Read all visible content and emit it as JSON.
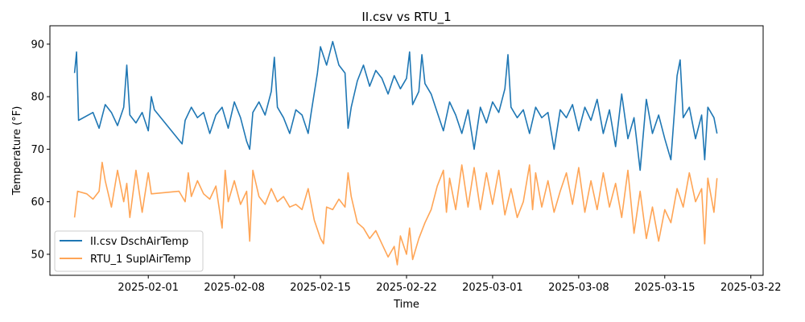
{
  "chart_data": {
    "type": "line",
    "title": "II.csv vs RTU_1",
    "xlabel": "Time",
    "ylabel": "Temperature (°F)",
    "x_axis_type": "date",
    "xlim": [
      "2025-01-24",
      "2025-03-23"
    ],
    "ylim": [
      46,
      93.5
    ],
    "x_ticks": [
      "2025-02-01",
      "2025-02-08",
      "2025-02-15",
      "2025-02-22",
      "2025-03-01",
      "2025-03-08",
      "2025-03-15",
      "2025-03-22"
    ],
    "y_ticks": [
      50,
      60,
      70,
      80,
      90
    ],
    "grid": false,
    "legend": {
      "placement": "bottom-left"
    },
    "series": [
      {
        "name": "II.csv DschAirTemp",
        "color": "#1f77b4",
        "opacity": 1,
        "points": [
          [
            "2025-01-26T00:00",
            84.5
          ],
          [
            "2025-01-26T04:00",
            88.5
          ],
          [
            "2025-01-26T08:00",
            75.5
          ],
          [
            "2025-01-27T12:00",
            77.0
          ],
          [
            "2025-01-28T00:00",
            74.0
          ],
          [
            "2025-01-28T12:00",
            78.5
          ],
          [
            "2025-01-29T00:00",
            77.0
          ],
          [
            "2025-01-29T12:00",
            74.5
          ],
          [
            "2025-01-30T00:00",
            78.0
          ],
          [
            "2025-01-30T06:00",
            86.0
          ],
          [
            "2025-01-30T12:00",
            76.5
          ],
          [
            "2025-01-31T00:00",
            75.0
          ],
          [
            "2025-01-31T12:00",
            77.0
          ],
          [
            "2025-02-01T00:00",
            73.5
          ],
          [
            "2025-02-01T06:00",
            80.0
          ],
          [
            "2025-02-01T12:00",
            77.5
          ],
          [
            "2025-02-03T18:00",
            71.0
          ],
          [
            "2025-02-04T00:00",
            75.5
          ],
          [
            "2025-02-04T12:00",
            78.0
          ],
          [
            "2025-02-05T00:00",
            76.0
          ],
          [
            "2025-02-05T12:00",
            77.0
          ],
          [
            "2025-02-06T00:00",
            73.0
          ],
          [
            "2025-02-06T12:00",
            76.5
          ],
          [
            "2025-02-07T00:00",
            78.0
          ],
          [
            "2025-02-07T12:00",
            74.0
          ],
          [
            "2025-02-08T00:00",
            79.0
          ],
          [
            "2025-02-08T12:00",
            76.0
          ],
          [
            "2025-02-09T00:00",
            71.5
          ],
          [
            "2025-02-09T06:00",
            70.0
          ],
          [
            "2025-02-09T12:00",
            77.0
          ],
          [
            "2025-02-10T00:00",
            79.0
          ],
          [
            "2025-02-10T12:00",
            76.5
          ],
          [
            "2025-02-11T00:00",
            81.0
          ],
          [
            "2025-02-11T06:00",
            87.5
          ],
          [
            "2025-02-11T12:00",
            78.0
          ],
          [
            "2025-02-12T00:00",
            76.0
          ],
          [
            "2025-02-12T12:00",
            73.0
          ],
          [
            "2025-02-13T00:00",
            77.5
          ],
          [
            "2025-02-13T12:00",
            76.5
          ],
          [
            "2025-02-14T00:00",
            73.0
          ],
          [
            "2025-02-14T06:00",
            77.0
          ],
          [
            "2025-02-14T18:00",
            84.5
          ],
          [
            "2025-02-15T00:00",
            89.5
          ],
          [
            "2025-02-15T12:00",
            86.0
          ],
          [
            "2025-02-16T00:00",
            90.5
          ],
          [
            "2025-02-16T12:00",
            86.0
          ],
          [
            "2025-02-17T00:00",
            84.5
          ],
          [
            "2025-02-17T06:00",
            74.0
          ],
          [
            "2025-02-17T12:00",
            78.0
          ],
          [
            "2025-02-18T00:00",
            83.0
          ],
          [
            "2025-02-18T12:00",
            86.0
          ],
          [
            "2025-02-19T00:00",
            82.0
          ],
          [
            "2025-02-19T12:00",
            85.0
          ],
          [
            "2025-02-20T00:00",
            83.5
          ],
          [
            "2025-02-20T12:00",
            80.5
          ],
          [
            "2025-02-21T00:00",
            84.0
          ],
          [
            "2025-02-21T12:00",
            81.5
          ],
          [
            "2025-02-22T00:00",
            83.5
          ],
          [
            "2025-02-22T06:00",
            88.5
          ],
          [
            "2025-02-22T12:00",
            78.5
          ],
          [
            "2025-02-23T00:00",
            81.0
          ],
          [
            "2025-02-23T06:00",
            88.0
          ],
          [
            "2025-02-23T12:00",
            82.5
          ],
          [
            "2025-02-24T00:00",
            80.5
          ],
          [
            "2025-02-24T12:00",
            77.0
          ],
          [
            "2025-02-25T00:00",
            73.5
          ],
          [
            "2025-02-25T12:00",
            79.0
          ],
          [
            "2025-02-26T00:00",
            76.5
          ],
          [
            "2025-02-26T12:00",
            73.0
          ],
          [
            "2025-02-27T00:00",
            77.5
          ],
          [
            "2025-02-27T12:00",
            70.0
          ],
          [
            "2025-02-28T00:00",
            78.0
          ],
          [
            "2025-02-28T12:00",
            75.0
          ],
          [
            "2025-03-01T00:00",
            79.0
          ],
          [
            "2025-03-01T12:00",
            77.0
          ],
          [
            "2025-03-02T00:00",
            81.5
          ],
          [
            "2025-03-02T06:00",
            88.0
          ],
          [
            "2025-03-02T12:00",
            78.0
          ],
          [
            "2025-03-03T00:00",
            76.0
          ],
          [
            "2025-03-03T12:00",
            77.5
          ],
          [
            "2025-03-04T00:00",
            73.0
          ],
          [
            "2025-03-04T12:00",
            78.0
          ],
          [
            "2025-03-05T00:00",
            76.0
          ],
          [
            "2025-03-05T12:00",
            77.0
          ],
          [
            "2025-03-06T00:00",
            70.0
          ],
          [
            "2025-03-06T12:00",
            77.5
          ],
          [
            "2025-03-07T00:00",
            76.0
          ],
          [
            "2025-03-07T12:00",
            78.5
          ],
          [
            "2025-03-08T00:00",
            73.5
          ],
          [
            "2025-03-08T12:00",
            78.0
          ],
          [
            "2025-03-09T00:00",
            75.5
          ],
          [
            "2025-03-09T12:00",
            79.5
          ],
          [
            "2025-03-10T00:00",
            73.0
          ],
          [
            "2025-03-10T12:00",
            77.5
          ],
          [
            "2025-03-11T00:00",
            70.5
          ],
          [
            "2025-03-11T12:00",
            80.5
          ],
          [
            "2025-03-12T00:00",
            72.0
          ],
          [
            "2025-03-12T12:00",
            76.0
          ],
          [
            "2025-03-13T00:00",
            66.0
          ],
          [
            "2025-03-13T12:00",
            79.5
          ],
          [
            "2025-03-14T00:00",
            73.0
          ],
          [
            "2025-03-14T12:00",
            76.5
          ],
          [
            "2025-03-15T00:00",
            72.0
          ],
          [
            "2025-03-15T12:00",
            68.0
          ],
          [
            "2025-03-16T00:00",
            84.0
          ],
          [
            "2025-03-16T06:00",
            87.0
          ],
          [
            "2025-03-16T12:00",
            76.0
          ],
          [
            "2025-03-17T00:00",
            78.0
          ],
          [
            "2025-03-17T12:00",
            72.0
          ],
          [
            "2025-03-18T00:00",
            76.5
          ],
          [
            "2025-03-18T06:00",
            68.0
          ],
          [
            "2025-03-18T12:00",
            78.0
          ],
          [
            "2025-03-19T00:00",
            76.0
          ],
          [
            "2025-03-19T06:00",
            73.0
          ]
        ]
      },
      {
        "name": "RTU_1 SuplAirTemp",
        "color": "#ff7f0e",
        "opacity": 0.7,
        "points": [
          [
            "2025-01-26T00:00",
            57.0
          ],
          [
            "2025-01-26T06:00",
            62.0
          ],
          [
            "2025-01-27T00:00",
            61.5
          ],
          [
            "2025-01-27T12:00",
            60.5
          ],
          [
            "2025-01-28T00:00",
            62.0
          ],
          [
            "2025-01-28T06:00",
            67.5
          ],
          [
            "2025-01-28T12:00",
            64.0
          ],
          [
            "2025-01-29T00:00",
            59.0
          ],
          [
            "2025-01-29T12:00",
            66.0
          ],
          [
            "2025-01-30T00:00",
            60.0
          ],
          [
            "2025-01-30T06:00",
            63.5
          ],
          [
            "2025-01-30T12:00",
            57.0
          ],
          [
            "2025-01-31T00:00",
            66.0
          ],
          [
            "2025-01-31T12:00",
            58.0
          ],
          [
            "2025-02-01T00:00",
            65.5
          ],
          [
            "2025-02-01T06:00",
            61.5
          ],
          [
            "2025-02-03T12:00",
            62.0
          ],
          [
            "2025-02-04T00:00",
            60.0
          ],
          [
            "2025-02-04T06:00",
            65.5
          ],
          [
            "2025-02-04T12:00",
            61.0
          ],
          [
            "2025-02-05T00:00",
            64.0
          ],
          [
            "2025-02-05T12:00",
            61.5
          ],
          [
            "2025-02-06T00:00",
            60.5
          ],
          [
            "2025-02-06T12:00",
            63.0
          ],
          [
            "2025-02-07T00:00",
            55.0
          ],
          [
            "2025-02-07T06:00",
            66.0
          ],
          [
            "2025-02-07T12:00",
            60.0
          ],
          [
            "2025-02-08T00:00",
            64.0
          ],
          [
            "2025-02-08T12:00",
            59.5
          ],
          [
            "2025-02-09T00:00",
            62.0
          ],
          [
            "2025-02-09T06:00",
            52.5
          ],
          [
            "2025-02-09T12:00",
            66.0
          ],
          [
            "2025-02-10T00:00",
            61.0
          ],
          [
            "2025-02-10T12:00",
            59.5
          ],
          [
            "2025-02-11T00:00",
            62.5
          ],
          [
            "2025-02-11T12:00",
            60.0
          ],
          [
            "2025-02-12T00:00",
            61.0
          ],
          [
            "2025-02-12T12:00",
            59.0
          ],
          [
            "2025-02-13T00:00",
            59.5
          ],
          [
            "2025-02-13T12:00",
            58.5
          ],
          [
            "2025-02-14T00:00",
            62.5
          ],
          [
            "2025-02-14T12:00",
            56.5
          ],
          [
            "2025-02-15T00:00",
            53.0
          ],
          [
            "2025-02-15T06:00",
            52.0
          ],
          [
            "2025-02-15T12:00",
            59.0
          ],
          [
            "2025-02-16T00:00",
            58.5
          ],
          [
            "2025-02-16T12:00",
            60.5
          ],
          [
            "2025-02-17T00:00",
            59.0
          ],
          [
            "2025-02-17T06:00",
            65.5
          ],
          [
            "2025-02-17T12:00",
            61.0
          ],
          [
            "2025-02-18T00:00",
            56.0
          ],
          [
            "2025-02-18T12:00",
            55.0
          ],
          [
            "2025-02-19T00:00",
            53.0
          ],
          [
            "2025-02-19T12:00",
            54.5
          ],
          [
            "2025-02-20T00:00",
            52.0
          ],
          [
            "2025-02-20T12:00",
            49.5
          ],
          [
            "2025-02-21T00:00",
            51.5
          ],
          [
            "2025-02-21T06:00",
            48.0
          ],
          [
            "2025-02-21T12:00",
            53.5
          ],
          [
            "2025-02-22T00:00",
            50.0
          ],
          [
            "2025-02-22T06:00",
            55.0
          ],
          [
            "2025-02-22T12:00",
            49.0
          ],
          [
            "2025-02-23T00:00",
            53.0
          ],
          [
            "2025-02-23T12:00",
            56.0
          ],
          [
            "2025-02-24T00:00",
            58.5
          ],
          [
            "2025-02-24T12:00",
            63.0
          ],
          [
            "2025-02-25T00:00",
            66.0
          ],
          [
            "2025-02-25T06:00",
            58.0
          ],
          [
            "2025-02-25T12:00",
            64.5
          ],
          [
            "2025-02-26T00:00",
            58.5
          ],
          [
            "2025-02-26T12:00",
            67.0
          ],
          [
            "2025-02-27T00:00",
            59.0
          ],
          [
            "2025-02-27T12:00",
            66.5
          ],
          [
            "2025-02-28T00:00",
            58.5
          ],
          [
            "2025-02-28T12:00",
            65.5
          ],
          [
            "2025-03-01T00:00",
            59.5
          ],
          [
            "2025-03-01T12:00",
            66.0
          ],
          [
            "2025-03-02T00:00",
            57.5
          ],
          [
            "2025-03-02T12:00",
            62.5
          ],
          [
            "2025-03-03T00:00",
            57.0
          ],
          [
            "2025-03-03T12:00",
            60.0
          ],
          [
            "2025-03-04T00:00",
            67.0
          ],
          [
            "2025-03-04T06:00",
            58.5
          ],
          [
            "2025-03-04T12:00",
            65.5
          ],
          [
            "2025-03-05T00:00",
            59.0
          ],
          [
            "2025-03-05T12:00",
            64.0
          ],
          [
            "2025-03-06T00:00",
            58.0
          ],
          [
            "2025-03-06T12:00",
            62.0
          ],
          [
            "2025-03-07T00:00",
            65.5
          ],
          [
            "2025-03-07T12:00",
            59.5
          ],
          [
            "2025-03-08T00:00",
            66.5
          ],
          [
            "2025-03-08T12:00",
            58.0
          ],
          [
            "2025-03-09T00:00",
            64.0
          ],
          [
            "2025-03-09T12:00",
            58.5
          ],
          [
            "2025-03-10T00:00",
            65.5
          ],
          [
            "2025-03-10T12:00",
            59.0
          ],
          [
            "2025-03-11T00:00",
            63.5
          ],
          [
            "2025-03-11T12:00",
            57.0
          ],
          [
            "2025-03-12T00:00",
            66.0
          ],
          [
            "2025-03-12T12:00",
            54.0
          ],
          [
            "2025-03-13T00:00",
            62.0
          ],
          [
            "2025-03-13T12:00",
            53.0
          ],
          [
            "2025-03-14T00:00",
            59.0
          ],
          [
            "2025-03-14T12:00",
            52.5
          ],
          [
            "2025-03-15T00:00",
            58.5
          ],
          [
            "2025-03-15T12:00",
            56.0
          ],
          [
            "2025-03-16T00:00",
            62.5
          ],
          [
            "2025-03-16T12:00",
            59.0
          ],
          [
            "2025-03-17T00:00",
            65.5
          ],
          [
            "2025-03-17T12:00",
            60.0
          ],
          [
            "2025-03-18T00:00",
            62.5
          ],
          [
            "2025-03-18T06:00",
            52.0
          ],
          [
            "2025-03-18T12:00",
            64.5
          ],
          [
            "2025-03-19T00:00",
            58.0
          ],
          [
            "2025-03-19T06:00",
            64.5
          ]
        ]
      }
    ]
  }
}
